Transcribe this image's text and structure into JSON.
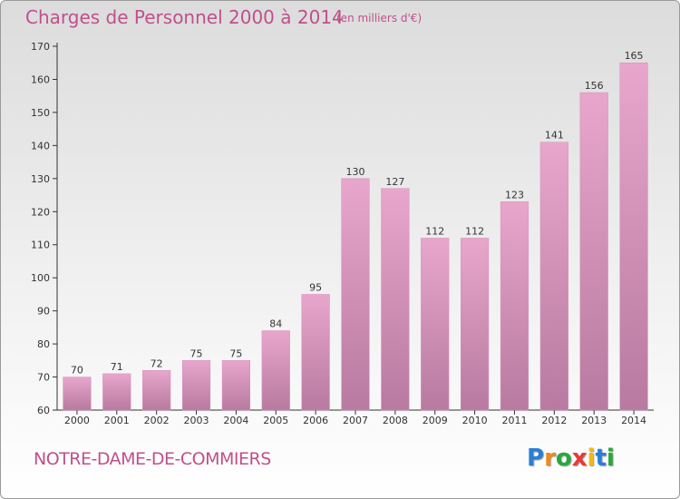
{
  "title": "Charges de Personnel 2000 à 2014",
  "subtitle": "(en milliers d'€)",
  "commune": "NOTRE-DAME-DE-COMMIERS",
  "logo": {
    "letters": [
      "P",
      "r",
      "o",
      "x",
      "i",
      "t",
      "i"
    ],
    "colors": [
      "#2a7fd4",
      "#f08a1c",
      "#28a83c",
      "#e83a3a",
      "#f0b81c",
      "#2a7fd4",
      "#28a83c"
    ]
  },
  "colors": {
    "bar_top": "#e8a6cc",
    "bar_bottom": "#b87aa0",
    "accent": "#c0508c"
  },
  "chart_data": {
    "type": "bar",
    "categories": [
      "2000",
      "2001",
      "2002",
      "2003",
      "2004",
      "2005",
      "2006",
      "2007",
      "2008",
      "2009",
      "2010",
      "2011",
      "2012",
      "2013",
      "2014"
    ],
    "values": [
      70,
      71,
      72,
      75,
      75,
      84,
      95,
      130,
      127,
      112,
      112,
      123,
      141,
      156,
      165
    ],
    "title": "Charges de Personnel 2000 à 2014",
    "ylim": [
      60,
      170
    ],
    "yticks": [
      60,
      70,
      80,
      90,
      100,
      110,
      120,
      130,
      140,
      150,
      160,
      170
    ],
    "grid": false,
    "data_labels": true
  }
}
